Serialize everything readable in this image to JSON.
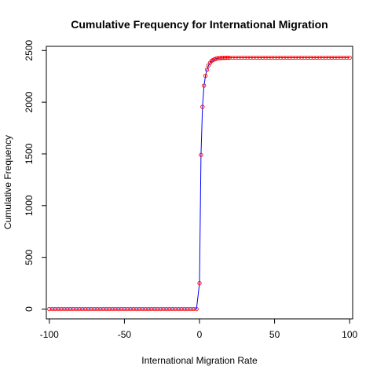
{
  "chart_data": {
    "type": "line",
    "title": "Cumulative Frequency for  International  Migration",
    "xlabel": "International  Migration Rate",
    "ylabel": "Cumulative Frequency",
    "xlim": [
      -102,
      102
    ],
    "ylim": [
      -95,
      2540
    ],
    "xticks": [
      -100,
      -50,
      0,
      50,
      100
    ],
    "yticks": [
      0,
      500,
      1000,
      1500,
      2000,
      2500
    ],
    "grid": false,
    "legend": "none",
    "line_color": "#0000ff",
    "point_color": "#ff0000",
    "x": [
      -100,
      -98,
      -96,
      -94,
      -92,
      -90,
      -88,
      -86,
      -84,
      -82,
      -80,
      -78,
      -76,
      -74,
      -72,
      -70,
      -68,
      -66,
      -64,
      -62,
      -60,
      -58,
      -56,
      -54,
      -52,
      -50,
      -48,
      -46,
      -44,
      -42,
      -40,
      -38,
      -36,
      -34,
      -32,
      -30,
      -28,
      -26,
      -24,
      -22,
      -20,
      -18,
      -16,
      -14,
      -12,
      -10,
      -8,
      -6,
      -4,
      -2,
      0,
      1,
      2,
      3,
      4,
      5,
      6,
      7,
      8,
      9,
      10,
      11,
      12,
      13,
      14,
      15,
      16,
      17,
      18,
      19,
      20,
      22,
      24,
      26,
      28,
      30,
      32,
      34,
      36,
      38,
      40,
      42,
      44,
      46,
      48,
      50,
      52,
      54,
      56,
      58,
      60,
      62,
      64,
      66,
      68,
      70,
      72,
      74,
      76,
      78,
      80,
      82,
      84,
      86,
      88,
      90,
      92,
      94,
      96,
      98,
      100
    ],
    "y": [
      0,
      0,
      0,
      0,
      0,
      0,
      0,
      0,
      0,
      0,
      0,
      0,
      0,
      0,
      0,
      0,
      0,
      0,
      0,
      0,
      0,
      0,
      0,
      0,
      0,
      0,
      0,
      0,
      0,
      0,
      0,
      0,
      0,
      0,
      0,
      0,
      0,
      0,
      0,
      0,
      0,
      0,
      0,
      0,
      0,
      0,
      0,
      0,
      0,
      0,
      250,
      1490,
      1955,
      2160,
      2255,
      2315,
      2355,
      2380,
      2398,
      2408,
      2415,
      2420,
      2424,
      2426,
      2427,
      2428,
      2429,
      2429,
      2430,
      2430,
      2430,
      2430,
      2430,
      2430,
      2430,
      2430,
      2430,
      2430,
      2430,
      2430,
      2430,
      2430,
      2430,
      2430,
      2430,
      2430,
      2430,
      2430,
      2430,
      2430,
      2430,
      2430,
      2430,
      2430,
      2430,
      2430,
      2430,
      2430,
      2430,
      2430,
      2430,
      2430,
      2430,
      2430,
      2430,
      2430,
      2430,
      2430,
      2430,
      2430,
      2430
    ]
  }
}
